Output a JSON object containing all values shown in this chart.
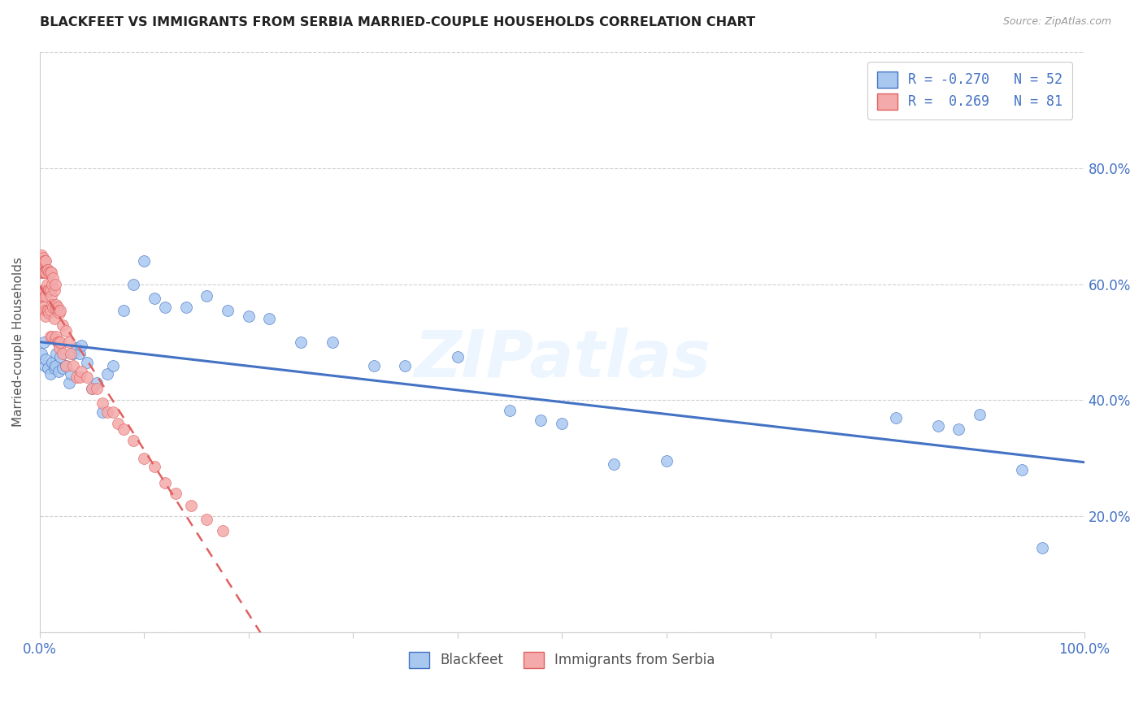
{
  "title": "BLACKFEET VS IMMIGRANTS FROM SERBIA MARRIED-COUPLE HOUSEHOLDS CORRELATION CHART",
  "source": "Source: ZipAtlas.com",
  "ylabel": "Married-couple Households",
  "background_color": "#ffffff",
  "watermark": "ZIPatlas",
  "blackfeet_R": -0.27,
  "blackfeet_N": 52,
  "serbia_R": 0.269,
  "serbia_N": 81,
  "blackfeet_color": "#a8c8f0",
  "blackfeet_line_color": "#4472c4",
  "serbia_color": "#f4aaaa",
  "serbia_line_color": "#e06060",
  "xlim": [
    0,
    1.0
  ],
  "ylim": [
    0,
    1.0
  ],
  "blackfeet_x": [
    0.002,
    0.004,
    0.005,
    0.006,
    0.008,
    0.01,
    0.012,
    0.014,
    0.015,
    0.016,
    0.018,
    0.02,
    0.022,
    0.025,
    0.028,
    0.03,
    0.032,
    0.035,
    0.038,
    0.04,
    0.045,
    0.05,
    0.055,
    0.06,
    0.065,
    0.07,
    0.08,
    0.09,
    0.1,
    0.11,
    0.12,
    0.14,
    0.16,
    0.18,
    0.2,
    0.22,
    0.25,
    0.28,
    0.32,
    0.35,
    0.4,
    0.45,
    0.48,
    0.5,
    0.55,
    0.6,
    0.82,
    0.86,
    0.88,
    0.9,
    0.94,
    0.96
  ],
  "blackfeet_y": [
    0.48,
    0.5,
    0.46,
    0.47,
    0.455,
    0.445,
    0.465,
    0.455,
    0.46,
    0.48,
    0.45,
    0.475,
    0.455,
    0.46,
    0.43,
    0.445,
    0.48,
    0.49,
    0.48,
    0.495,
    0.465,
    0.42,
    0.43,
    0.38,
    0.445,
    0.46,
    0.555,
    0.6,
    0.64,
    0.575,
    0.56,
    0.56,
    0.58,
    0.555,
    0.545,
    0.54,
    0.5,
    0.5,
    0.46,
    0.46,
    0.475,
    0.382,
    0.365,
    0.36,
    0.29,
    0.295,
    0.37,
    0.355,
    0.35,
    0.375,
    0.28,
    0.145
  ],
  "serbia_x": [
    0.001,
    0.001,
    0.002,
    0.002,
    0.002,
    0.003,
    0.003,
    0.003,
    0.004,
    0.004,
    0.004,
    0.004,
    0.005,
    0.005,
    0.005,
    0.005,
    0.006,
    0.006,
    0.006,
    0.006,
    0.007,
    0.007,
    0.007,
    0.008,
    0.008,
    0.008,
    0.009,
    0.009,
    0.009,
    0.01,
    0.01,
    0.01,
    0.01,
    0.011,
    0.011,
    0.012,
    0.012,
    0.012,
    0.013,
    0.013,
    0.014,
    0.014,
    0.015,
    0.015,
    0.015,
    0.016,
    0.016,
    0.017,
    0.017,
    0.018,
    0.018,
    0.019,
    0.019,
    0.02,
    0.02,
    0.022,
    0.022,
    0.025,
    0.025,
    0.028,
    0.03,
    0.032,
    0.035,
    0.038,
    0.04,
    0.045,
    0.05,
    0.055,
    0.06,
    0.065,
    0.07,
    0.075,
    0.08,
    0.09,
    0.1,
    0.11,
    0.12,
    0.13,
    0.145,
    0.16,
    0.175
  ],
  "serbia_y": [
    0.62,
    0.58,
    0.65,
    0.62,
    0.58,
    0.645,
    0.62,
    0.58,
    0.64,
    0.62,
    0.59,
    0.56,
    0.64,
    0.62,
    0.59,
    0.555,
    0.64,
    0.62,
    0.58,
    0.545,
    0.625,
    0.6,
    0.555,
    0.625,
    0.59,
    0.555,
    0.62,
    0.59,
    0.55,
    0.62,
    0.59,
    0.555,
    0.51,
    0.62,
    0.58,
    0.6,
    0.565,
    0.51,
    0.61,
    0.56,
    0.59,
    0.54,
    0.6,
    0.56,
    0.505,
    0.565,
    0.51,
    0.56,
    0.5,
    0.555,
    0.5,
    0.55,
    0.49,
    0.555,
    0.5,
    0.53,
    0.48,
    0.52,
    0.46,
    0.5,
    0.48,
    0.46,
    0.44,
    0.44,
    0.45,
    0.44,
    0.42,
    0.42,
    0.395,
    0.38,
    0.38,
    0.36,
    0.35,
    0.33,
    0.3,
    0.285,
    0.258,
    0.24,
    0.218,
    0.195,
    0.175
  ],
  "legend1_label_bf": "R = -0.270   N = 52",
  "legend1_label_sr": "R =  0.269   N = 81",
  "legend2_label_bf": "Blackfeet",
  "legend2_label_sr": "Immigrants from Serbia"
}
